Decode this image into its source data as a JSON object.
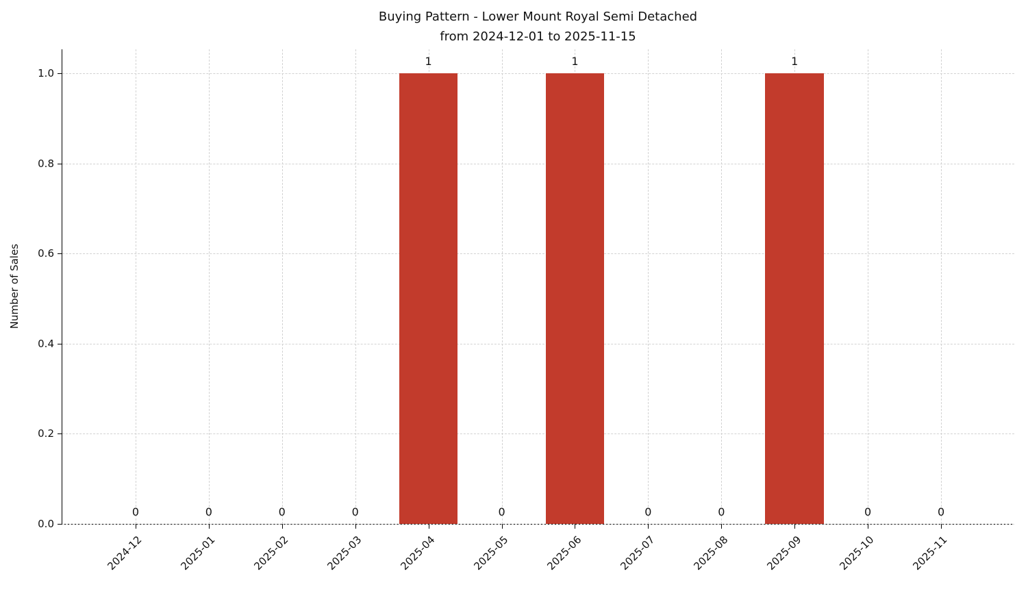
{
  "chart_data": {
    "type": "bar",
    "title": "Buying Pattern - Lower Mount Royal Semi Detached",
    "subtitle": "from 2024-12-01 to 2025-11-15",
    "ylabel": "Number of Sales",
    "xlabel": "",
    "categories": [
      "2024-12",
      "2025-01",
      "2025-02",
      "2025-03",
      "2025-04",
      "2025-05",
      "2025-06",
      "2025-07",
      "2025-08",
      "2025-09",
      "2025-10",
      "2025-11"
    ],
    "values": [
      0,
      0,
      0,
      0,
      1,
      0,
      1,
      0,
      0,
      1,
      0,
      0
    ],
    "value_labels": [
      "0",
      "0",
      "0",
      "0",
      "1",
      "0",
      "1",
      "0",
      "0",
      "1",
      "0",
      "0"
    ],
    "yticks": [
      0.0,
      0.2,
      0.4,
      0.6,
      0.8,
      1.0
    ],
    "ytick_labels": [
      "0.0",
      "0.2",
      "0.4",
      "0.6",
      "0.8",
      "1.0"
    ],
    "ylim": [
      0,
      1.053
    ],
    "bar_width_fraction": 0.8,
    "bar_color": "#c23b2c",
    "grid": true,
    "grid_style": "dashed",
    "grid_color": "#d2d2d2",
    "legend_position": "none"
  }
}
